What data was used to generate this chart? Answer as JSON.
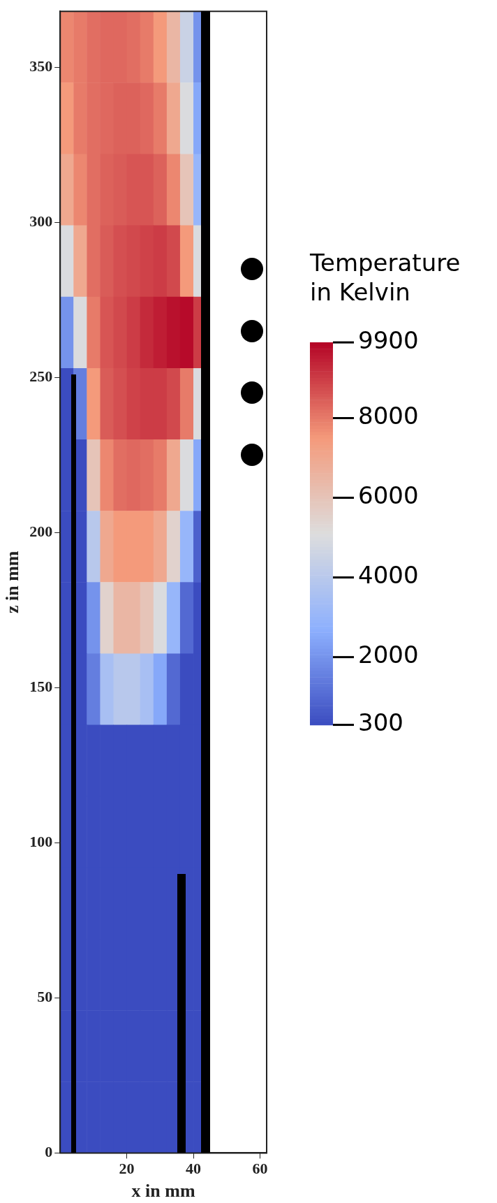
{
  "chart_data": {
    "type": "heatmap",
    "xlabel": "x in mm",
    "ylabel": "z in mm",
    "clabel": "Temperature in Kelvin",
    "x": [
      2,
      6,
      10,
      14,
      18,
      22,
      26,
      30,
      34,
      38,
      42
    ],
    "y": [
      356.5,
      333.5,
      310.5,
      287.5,
      264.5,
      241.5,
      218.5,
      195.5,
      172.5,
      149.5,
      126.5,
      103.5,
      80.5,
      57.5,
      34.5,
      11.5
    ],
    "cells": [
      [
        7800,
        8000,
        8200,
        8300,
        8300,
        8200,
        8000,
        7500,
        6500,
        4500,
        2000
      ],
      [
        7500,
        8000,
        8200,
        8300,
        8400,
        8400,
        8300,
        8000,
        7000,
        5000,
        2500
      ],
      [
        7000,
        7800,
        8200,
        8400,
        8500,
        8600,
        8600,
        8400,
        7800,
        6000,
        3000
      ],
      [
        5000,
        7000,
        8200,
        8500,
        8700,
        8800,
        8900,
        9000,
        8800,
        7500,
        5000
      ],
      [
        2000,
        5000,
        8000,
        8600,
        8800,
        9000,
        9300,
        9500,
        9700,
        9800,
        9000
      ],
      [
        300,
        1500,
        7500,
        8500,
        8700,
        8900,
        9000,
        9000,
        8800,
        8000,
        5000
      ],
      [
        300,
        300,
        6000,
        7800,
        8200,
        8300,
        8200,
        8000,
        7000,
        5000,
        2500
      ],
      [
        300,
        300,
        4000,
        7000,
        7500,
        7500,
        7500,
        7000,
        5500,
        3000,
        800
      ],
      [
        300,
        300,
        2000,
        5500,
        6500,
        6500,
        6000,
        5000,
        3000,
        1000,
        300
      ],
      [
        300,
        300,
        1500,
        3500,
        4000,
        4000,
        3500,
        2500,
        1000,
        300,
        300
      ],
      [
        300,
        300,
        300,
        300,
        300,
        300,
        300,
        300,
        300,
        300,
        300
      ],
      [
        300,
        300,
        300,
        300,
        300,
        300,
        300,
        300,
        300,
        300,
        300
      ],
      [
        300,
        300,
        300,
        300,
        300,
        300,
        300,
        300,
        300,
        300,
        300
      ],
      [
        300,
        300,
        300,
        300,
        300,
        300,
        300,
        300,
        300,
        300,
        300
      ],
      [
        300,
        300,
        300,
        300,
        300,
        300,
        300,
        300,
        300,
        300,
        300
      ],
      [
        300,
        300,
        300,
        300,
        300,
        300,
        300,
        300,
        300,
        300,
        300
      ]
    ],
    "xlim": [
      0,
      62
    ],
    "ylim": [
      0,
      368
    ],
    "xticks": [
      20,
      40,
      60
    ],
    "yticks": [
      0,
      50,
      100,
      150,
      200,
      250,
      300,
      350
    ],
    "clim": [
      300,
      9900
    ],
    "cticks": [
      300,
      2000,
      4000,
      6000,
      8000,
      9900
    ]
  }
}
